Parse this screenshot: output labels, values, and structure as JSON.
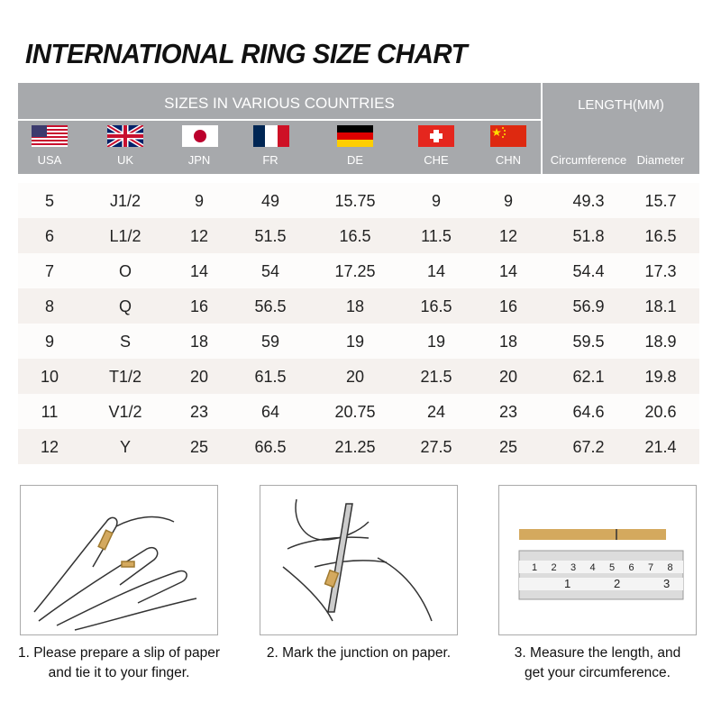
{
  "title": "INTERNATIONAL RING SIZE CHART",
  "header": {
    "sizes_title": "SIZES IN VARIOUS COUNTRIES",
    "length_title": "LENGTH(MM)"
  },
  "columns": [
    {
      "label": "USA",
      "flag": "us-flag"
    },
    {
      "label": "UK",
      "flag": "uk-flag"
    },
    {
      "label": "JPN",
      "flag": "japan-flag"
    },
    {
      "label": "FR",
      "flag": "france-flag"
    },
    {
      "label": "DE",
      "flag": "germany-flag"
    },
    {
      "label": "CHE",
      "flag": "switzerland-flag"
    },
    {
      "label": "CHN",
      "flag": "china-flag"
    },
    {
      "label": "Circumference"
    },
    {
      "label": "Diameter"
    }
  ],
  "rows": [
    [
      "5",
      "J1/2",
      "9",
      "49",
      "15.75",
      "9",
      "9",
      "49.3",
      "15.7"
    ],
    [
      "6",
      "L1/2",
      "12",
      "51.5",
      "16.5",
      "11.5",
      "12",
      "51.8",
      "16.5"
    ],
    [
      "7",
      "O",
      "14",
      "54",
      "17.25",
      "14",
      "14",
      "54.4",
      "17.3"
    ],
    [
      "8",
      "Q",
      "16",
      "56.5",
      "18",
      "16.5",
      "16",
      "56.9",
      "18.1"
    ],
    [
      "9",
      "S",
      "18",
      "59",
      "19",
      "19",
      "18",
      "59.5",
      "18.9"
    ],
    [
      "10",
      "T1/2",
      "20",
      "61.5",
      "20",
      "21.5",
      "20",
      "62.1",
      "19.8"
    ],
    [
      "11",
      "V1/2",
      "23",
      "64",
      "20.75",
      "24",
      "23",
      "64.6",
      "20.6"
    ],
    [
      "12",
      "Y",
      "25",
      "66.5",
      "21.25",
      "27.5",
      "25",
      "67.2",
      "21.4"
    ]
  ],
  "steps": [
    {
      "line1": "1. Please prepare a slip of paper",
      "line2": "and tie it to your finger."
    },
    {
      "line1": "2. Mark the junction on paper.",
      "line2": ""
    },
    {
      "line1": "3. Measure the length, and",
      "line2": "get your circumference."
    }
  ],
  "ruler": {
    "cm_ticks": [
      "1",
      "2",
      "3",
      "4",
      "5",
      "6",
      "7",
      "8"
    ],
    "inch_ticks": [
      "1",
      "2",
      "3"
    ]
  },
  "colors": {
    "header_bg": "#a7a9ac",
    "row_alt": "#f5f1ee",
    "paper_strip": "#d4a95e"
  }
}
